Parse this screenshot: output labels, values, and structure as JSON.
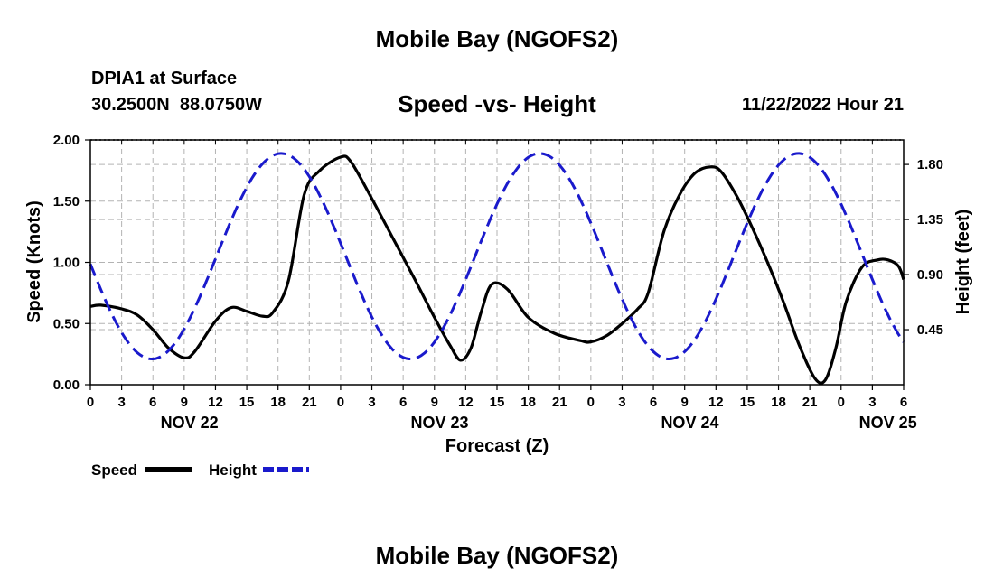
{
  "header": {
    "title": "Mobile Bay (NGOFS2)",
    "station": "DPIA1 at Surface",
    "coordinates": "30.2500N  88.0750W",
    "subtitle": "Speed -vs- Height",
    "timestamp": "11/22/2022 Hour 21",
    "footer_title": "Mobile Bay (NGOFS2)"
  },
  "chart_data": {
    "type": "line",
    "title": "Speed -vs- Height",
    "xlabel": "Forecast (Z)",
    "ylabel": "Speed (Knots)",
    "y2label": "Height (feet)",
    "xlim": [
      0,
      78
    ],
    "ylim": [
      0,
      2.0
    ],
    "y2lim": [
      0,
      2.0
    ],
    "x_ticks": [
      0,
      3,
      6,
      9,
      12,
      15,
      18,
      21,
      24,
      27,
      30,
      33,
      36,
      39,
      42,
      45,
      48,
      51,
      54,
      57,
      60,
      63,
      66,
      69,
      72,
      75,
      78
    ],
    "x_tick_labels": [
      "0",
      "3",
      "6",
      "9",
      "12",
      "15",
      "18",
      "21",
      "0",
      "3",
      "6",
      "9",
      "12",
      "15",
      "18",
      "21",
      "0",
      "3",
      "6",
      "9",
      "12",
      "15",
      "18",
      "21",
      "0",
      "3",
      "6"
    ],
    "date_labels": [
      {
        "x": 9.5,
        "label": "NOV 22"
      },
      {
        "x": 33.5,
        "label": "NOV 23"
      },
      {
        "x": 57.5,
        "label": "NOV 24"
      },
      {
        "x": 76.5,
        "label": "NOV 25"
      }
    ],
    "y_ticks": [
      0,
      0.5,
      1.0,
      1.5,
      2.0
    ],
    "y_tick_labels": [
      "0.00",
      "0.50",
      "1.00",
      "1.50",
      "2.00"
    ],
    "y2_ticks": [
      0.45,
      0.9,
      1.35,
      1.8
    ],
    "y2_tick_labels": [
      "0.45",
      "0.90",
      "1.35",
      "1.80"
    ],
    "grid": true,
    "legend_position": "bottom-left",
    "series": [
      {
        "name": "Speed",
        "axis": "left",
        "color": "#000000",
        "dash": "solid",
        "x": [
          0,
          1,
          3,
          4.5,
          6,
          7.5,
          9,
          10,
          12,
          13.5,
          15,
          16.5,
          17.5,
          19,
          20.5,
          22,
          24,
          25,
          27,
          29,
          31,
          33,
          34.5,
          35.5,
          36.5,
          37.5,
          38.5,
          40,
          42,
          44.5,
          47,
          48,
          49.5,
          51,
          52.5,
          53.5,
          55,
          56.5,
          58,
          59.5,
          60.5,
          62,
          63.5,
          65,
          66.5,
          68,
          69.5,
          70.5,
          71.5,
          72.5,
          74,
          75.5,
          76.5,
          77.5,
          78
        ],
        "values": [
          0.64,
          0.65,
          0.62,
          0.57,
          0.45,
          0.3,
          0.22,
          0.27,
          0.52,
          0.63,
          0.6,
          0.56,
          0.59,
          0.85,
          1.55,
          1.75,
          1.86,
          1.82,
          1.52,
          1.2,
          0.88,
          0.55,
          0.32,
          0.2,
          0.3,
          0.6,
          0.82,
          0.78,
          0.55,
          0.42,
          0.36,
          0.35,
          0.4,
          0.5,
          0.62,
          0.75,
          1.25,
          1.55,
          1.73,
          1.78,
          1.74,
          1.54,
          1.28,
          0.99,
          0.67,
          0.32,
          0.05,
          0.04,
          0.3,
          0.68,
          0.96,
          1.02,
          1.02,
          0.97,
          0.86
        ]
      },
      {
        "name": "Height",
        "axis": "right",
        "color": "#1a1acc",
        "dash": "dashed",
        "amplitude": 0.84,
        "mean": 1.05,
        "period_hours": 24.8,
        "peak_hour": 18.3,
        "range_feet": [
          0.22,
          1.89
        ]
      }
    ]
  },
  "legend": {
    "items": [
      {
        "label": "Speed",
        "color": "#000000",
        "dash": "solid"
      },
      {
        "label": "Height",
        "color": "#1a1acc",
        "dash": "dashed"
      }
    ]
  }
}
